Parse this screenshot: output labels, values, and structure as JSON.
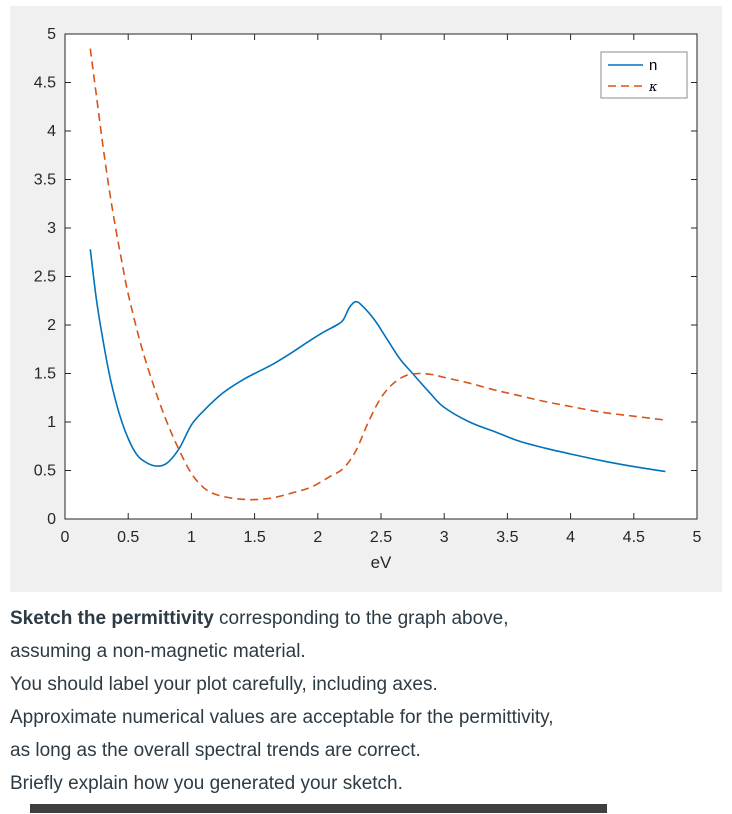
{
  "chart_data": {
    "type": "line",
    "title": "",
    "xlabel": "eV",
    "ylabel": "",
    "xlim": [
      0,
      5
    ],
    "ylim": [
      0,
      5
    ],
    "xticks": [
      0,
      0.5,
      1,
      1.5,
      2,
      2.5,
      3,
      3.5,
      4,
      4.5,
      5
    ],
    "yticks": [
      0,
      0.5,
      1,
      1.5,
      2,
      2.5,
      3,
      3.5,
      4,
      4.5,
      5
    ],
    "grid": false,
    "legend_position": "top-right",
    "figure_background": "#f0f0f0",
    "plot_background": "#ffffff",
    "axis_color": "#262626",
    "series": [
      {
        "name": "n",
        "color": "#0072BD",
        "style": "solid",
        "x": [
          0.2,
          0.25,
          0.3,
          0.35,
          0.4,
          0.45,
          0.5,
          0.55,
          0.6,
          0.7,
          0.8,
          0.9,
          1.0,
          1.1,
          1.25,
          1.4,
          1.5,
          1.65,
          1.8,
          1.95,
          2.05,
          2.15,
          2.2,
          2.25,
          2.3,
          2.35,
          2.45,
          2.55,
          2.65,
          2.75,
          2.9,
          3.0,
          3.2,
          3.4,
          3.6,
          3.8,
          4.0,
          4.25,
          4.5,
          4.75
        ],
        "y": [
          2.78,
          2.25,
          1.85,
          1.5,
          1.22,
          1.0,
          0.83,
          0.7,
          0.62,
          0.55,
          0.57,
          0.72,
          0.97,
          1.12,
          1.3,
          1.43,
          1.5,
          1.6,
          1.72,
          1.85,
          1.93,
          2.0,
          2.05,
          2.18,
          2.24,
          2.2,
          2.05,
          1.85,
          1.65,
          1.5,
          1.28,
          1.15,
          1.0,
          0.9,
          0.8,
          0.73,
          0.67,
          0.6,
          0.54,
          0.49
        ]
      },
      {
        "name": "κ",
        "color": "#D95319",
        "style": "dashed",
        "x": [
          0.2,
          0.25,
          0.3,
          0.35,
          0.4,
          0.45,
          0.5,
          0.6,
          0.7,
          0.8,
          0.9,
          1.0,
          1.1,
          1.2,
          1.35,
          1.5,
          1.65,
          1.8,
          1.95,
          2.1,
          2.2,
          2.3,
          2.4,
          2.5,
          2.6,
          2.7,
          2.8,
          2.9,
          3.0,
          3.2,
          3.4,
          3.6,
          3.8,
          4.0,
          4.25,
          4.5,
          4.75
        ],
        "y": [
          4.85,
          4.35,
          3.85,
          3.4,
          3.0,
          2.65,
          2.32,
          1.8,
          1.38,
          1.02,
          0.72,
          0.47,
          0.32,
          0.25,
          0.21,
          0.2,
          0.22,
          0.27,
          0.33,
          0.44,
          0.52,
          0.7,
          1.0,
          1.25,
          1.4,
          1.48,
          1.5,
          1.49,
          1.46,
          1.4,
          1.33,
          1.27,
          1.21,
          1.16,
          1.1,
          1.06,
          1.02
        ]
      }
    ]
  },
  "question": {
    "line1_bold": "Sketch the permittivity",
    "line1_rest": " corresponding to the graph above,",
    "line2": "assuming a non-magnetic material.",
    "line3": "You should label your plot carefully, including axes.",
    "line4": "Approximate numerical values are acceptable for the permittivity,",
    "line5": "as long as the overall spectral trends are correct.",
    "line6": "Briefly explain how you generated your sketch."
  }
}
